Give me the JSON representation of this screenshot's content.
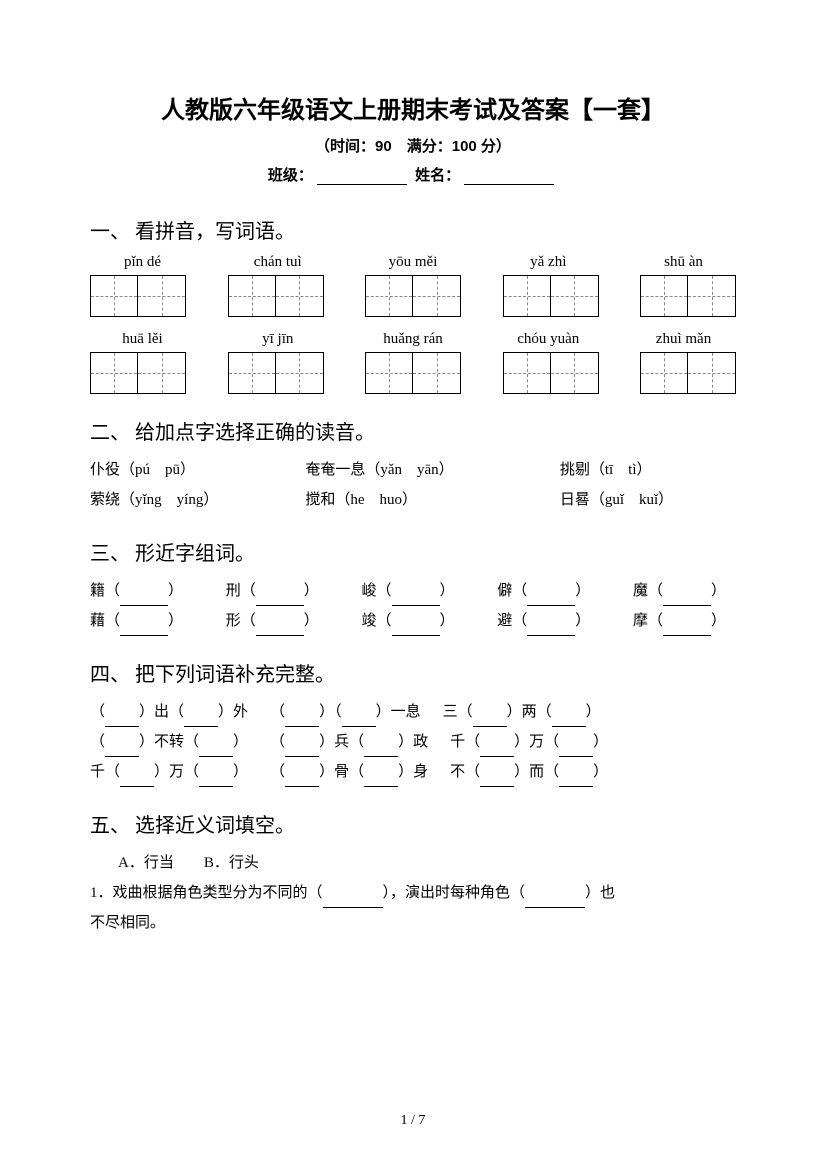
{
  "header": {
    "title": "人教版六年级语文上册期末考试及答案【一套】",
    "meta": "（时间：90　满分：100 分）",
    "class_label": "班级：",
    "name_label": "姓名："
  },
  "q1": {
    "head": "一、 看拼音，写词语。",
    "row1": [
      "pǐn dé",
      "chán tuì",
      "yōu měi",
      "yǎ zhì",
      "shū àn"
    ],
    "row2": [
      "huā lěi",
      "yī jīn",
      "huǎng rán",
      "chóu yuàn",
      "zhuì mǎn"
    ]
  },
  "q2": {
    "head": "二、 给加点字选择正确的读音。",
    "items": [
      {
        "t": "仆役（pú　pū）"
      },
      {
        "t": "奄奄一息（yǎn　yān）"
      },
      {
        "t": "挑剔（tī　tì）"
      },
      {
        "t": "萦绕（yǐng　yíng）"
      },
      {
        "t": "搅和（he　huo）"
      },
      {
        "t": "日晷（guǐ　kuǐ）"
      }
    ]
  },
  "q3": {
    "head": "三、 形近字组词。",
    "row1": [
      "籍",
      "刑",
      "峻",
      "僻",
      "魔"
    ],
    "row2": [
      "藉",
      "形",
      "竣",
      "避",
      "摩"
    ]
  },
  "q4": {
    "head": "四、 把下列词语补充完整。",
    "rows": [
      [
        {
          "parts": [
            "（",
            "）出（",
            "）外"
          ]
        },
        {
          "parts": [
            "（",
            "）（",
            "）一息"
          ]
        },
        {
          "parts": [
            "三（",
            "）两（",
            "）"
          ]
        }
      ],
      [
        {
          "parts": [
            "（",
            "）不转（",
            "）"
          ]
        },
        {
          "parts": [
            "（",
            "）兵（",
            "）政"
          ]
        },
        {
          "parts": [
            "千（",
            "）万（",
            "）"
          ]
        }
      ],
      [
        {
          "parts": [
            "千（",
            "）万（",
            "）"
          ]
        },
        {
          "parts": [
            "（",
            "）骨（",
            "）身"
          ]
        },
        {
          "parts": [
            "不（",
            "）而（",
            "）"
          ]
        }
      ]
    ]
  },
  "q5": {
    "head": "五、 选择近义词填空。",
    "opts": "A．行当　　B．行头",
    "line1a": "1．戏曲根据角色类型分为不同的（",
    "line1b": "），演出时每种角色（",
    "line1c": "）也",
    "line2": "不尽相同。"
  },
  "page_num": "1 / 7"
}
